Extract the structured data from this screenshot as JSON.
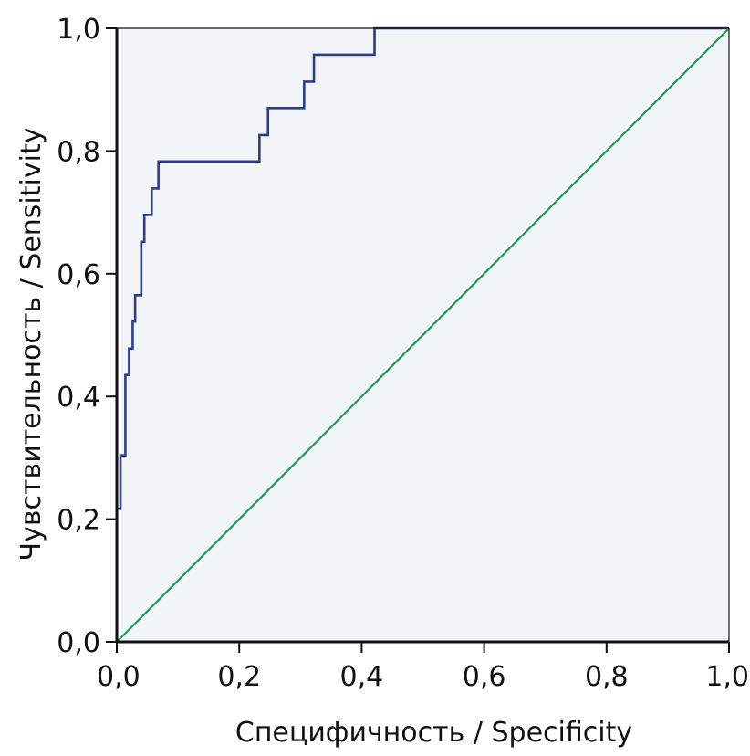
{
  "chart_data": {
    "type": "line",
    "xlabel": "Специфичность / Specificity",
    "ylabel": "Чувствительность / Sensitivity",
    "xlim": [
      0,
      1
    ],
    "ylim": [
      0,
      1
    ],
    "x_ticks": [
      "0,0",
      "0,2",
      "0,4",
      "0,6",
      "0,8",
      "1,0"
    ],
    "y_ticks": [
      "0,0",
      "0,2",
      "0,4",
      "0,6",
      "0,8",
      "1,0"
    ],
    "grid": false,
    "plot_background": "#f1f5f7",
    "series": [
      {
        "style": "step",
        "color": "#2e3a8c",
        "points": [
          [
            0.0,
            0.0
          ],
          [
            0.0,
            0.217
          ],
          [
            0.006,
            0.217
          ],
          [
            0.006,
            0.304
          ],
          [
            0.014,
            0.304
          ],
          [
            0.014,
            0.435
          ],
          [
            0.02,
            0.435
          ],
          [
            0.02,
            0.478
          ],
          [
            0.026,
            0.478
          ],
          [
            0.026,
            0.522
          ],
          [
            0.03,
            0.522
          ],
          [
            0.03,
            0.565
          ],
          [
            0.04,
            0.565
          ],
          [
            0.04,
            0.652
          ],
          [
            0.045,
            0.652
          ],
          [
            0.045,
            0.696
          ],
          [
            0.057,
            0.696
          ],
          [
            0.057,
            0.739
          ],
          [
            0.068,
            0.739
          ],
          [
            0.068,
            0.783
          ],
          [
            0.233,
            0.783
          ],
          [
            0.233,
            0.826
          ],
          [
            0.247,
            0.826
          ],
          [
            0.247,
            0.87
          ],
          [
            0.306,
            0.87
          ],
          [
            0.306,
            0.913
          ],
          [
            0.322,
            0.913
          ],
          [
            0.322,
            0.957
          ],
          [
            0.421,
            0.957
          ],
          [
            0.421,
            1.0
          ],
          [
            1.0,
            1.0
          ]
        ]
      },
      {
        "style": "line",
        "color": "#1f9a55",
        "points": [
          [
            0,
            0
          ],
          [
            1,
            1
          ]
        ]
      }
    ]
  }
}
